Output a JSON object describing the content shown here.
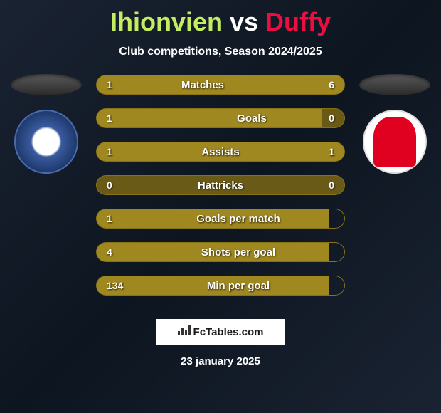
{
  "title": {
    "player1": "Ihionvien",
    "vs": "vs",
    "player2": "Duffy",
    "player1_color": "#c4ed5f",
    "player2_color": "#ef0c41"
  },
  "subtitle": "Club competitions, Season 2024/2025",
  "stats": [
    {
      "label": "Matches",
      "left_value": "1",
      "right_value": "6",
      "left_width": 45,
      "right_width": 95,
      "left_bg": "#a08820",
      "center_bg": "#a08820",
      "right_bg": "#a08820"
    },
    {
      "label": "Goals",
      "left_value": "1",
      "right_value": "0",
      "left_width": 120,
      "right_width": 32,
      "left_bg": "#a08820",
      "center_bg": "#a08820",
      "right_bg": "#6a5a18"
    },
    {
      "label": "Assists",
      "left_value": "1",
      "right_value": "1",
      "left_width": 72,
      "right_width": 72,
      "left_bg": "#a08820",
      "center_bg": "#a08820",
      "right_bg": "#a08820"
    },
    {
      "label": "Hattricks",
      "left_value": "0",
      "right_value": "0",
      "left_width": 32,
      "right_width": 32,
      "left_bg": "#6a5a18",
      "center_bg": "#6a5a18",
      "right_bg": "#6a5a18"
    },
    {
      "label": "Goals per match",
      "left_value": "1",
      "right_value": "",
      "left_width": 72,
      "right_width": 22,
      "left_bg": "#a08820",
      "center_bg": "#a08820",
      "right_bg": "transparent"
    },
    {
      "label": "Shots per goal",
      "left_value": "4",
      "right_value": "",
      "left_width": 72,
      "right_width": 22,
      "left_bg": "#a08820",
      "center_bg": "#a08820",
      "right_bg": "transparent"
    },
    {
      "label": "Min per goal",
      "left_value": "134",
      "right_value": "",
      "left_width": 72,
      "right_width": 22,
      "left_bg": "#a08820",
      "center_bg": "#a08820",
      "right_bg": "transparent"
    }
  ],
  "footer": {
    "logo_text": "FcTables.com",
    "date": "23 january 2025"
  },
  "colors": {
    "background_start": "#1a2332",
    "background_mid": "#0d1520",
    "bar_fill": "#a08820",
    "bar_empty": "#6a5a18",
    "bar_border": "#877314",
    "text_white": "#ffffff"
  }
}
